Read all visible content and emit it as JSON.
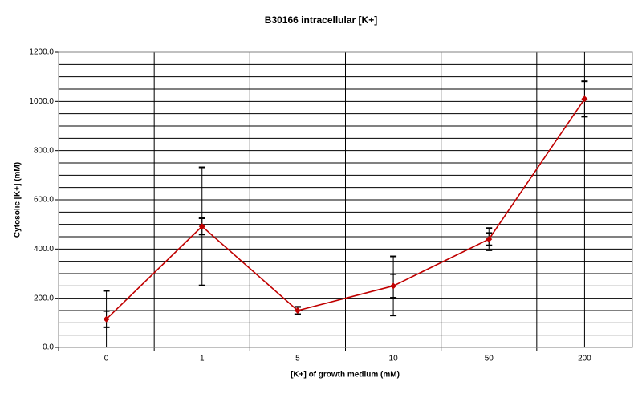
{
  "chart_data": {
    "type": "line",
    "title": "B30166 intracellular [K+]",
    "x_label": "[K+] of growth medium (mM)",
    "y_label": "Cytosolic [K+] (mM)",
    "categories": [
      "0",
      "1",
      "5",
      "10",
      "50",
      "200"
    ],
    "series": [
      {
        "name": "B30166",
        "color": "#c00000",
        "values": [
          115,
          492,
          150,
          250,
          440,
          1010
        ],
        "errors": [
          [
            33,
            33,
            15,
            48,
            25,
            72
          ],
          [
            115,
            240,
            15,
            120,
            45,
            1010
          ]
        ]
      }
    ],
    "ylim": [
      0,
      1200
    ],
    "yticks": [
      {
        "value": 0,
        "label": "0.0"
      },
      {
        "value": 200,
        "label": "200.0"
      },
      {
        "value": 400,
        "label": "400.0"
      },
      {
        "value": 600,
        "label": "600.0"
      },
      {
        "value": 800,
        "label": "800.0"
      },
      {
        "value": 1000,
        "label": "1000.0"
      },
      {
        "value": 1200,
        "label": "1200.0"
      }
    ],
    "y_minor_ticks": [
      50,
      100,
      150,
      250,
      300,
      350,
      450,
      500,
      550,
      650,
      700,
      750,
      850,
      900,
      950,
      1050,
      1100,
      1150
    ],
    "grid": true
  }
}
